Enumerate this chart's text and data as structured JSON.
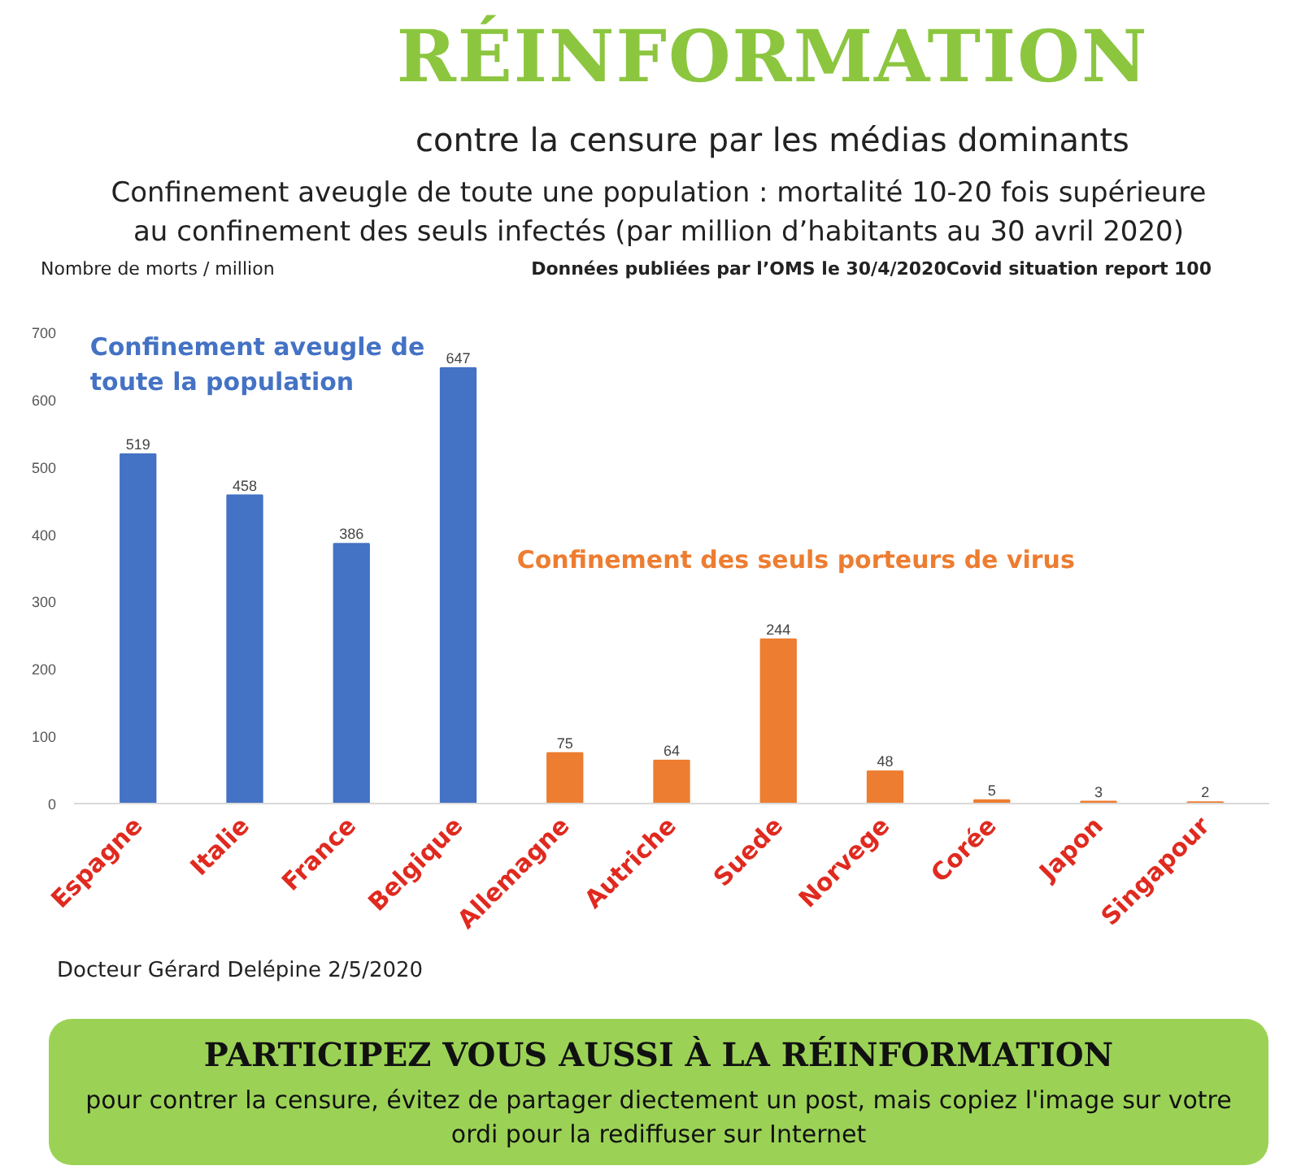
{
  "chart_data": {
    "type": "bar",
    "title": "Confinement aveugle de toute une population : mortalité 10-20 fois supérieure au confinement des seuls infectés (par million d’habitants au 30 avril 2020)",
    "subtitle": "Données publiées par l’OMS le 30/4/2020Covid situation report 100",
    "ylabel": "Nombre de morts / million",
    "categories": [
      "Espagne",
      "Italie",
      "France",
      "Belgique",
      "Allemagne",
      "Autriche",
      "Suede",
      "Norvege",
      "Corée",
      "Japon",
      "Singapour"
    ],
    "series": [
      {
        "name": "Confinement aveugle de toute la population",
        "color": "#4472c4",
        "values": [
          519,
          458,
          386,
          647,
          null,
          null,
          null,
          null,
          null,
          null,
          null
        ]
      },
      {
        "name": "Confinement des seuls porteurs de virus",
        "color": "#ed7d31",
        "values": [
          null,
          null,
          null,
          null,
          75,
          64,
          244,
          48,
          5,
          3,
          2
        ]
      }
    ],
    "data_labels": true,
    "ylim": [
      0,
      700
    ],
    "yticks": [
      0,
      100,
      200,
      300,
      400,
      500,
      600,
      700
    ],
    "annotations": [
      "RÉINFORMATION",
      "contre la censure par les médias dominants",
      "Docteur Gérard Delépine 2/5/2020",
      "PARTICIPEZ VOUS AUSSI À LA RÉINFORMATION",
      "pour contrer la censure, évitez de partager diectement un post, mais copiez l'image sur votre ordi pour la rediffuser sur Internet"
    ]
  }
}
